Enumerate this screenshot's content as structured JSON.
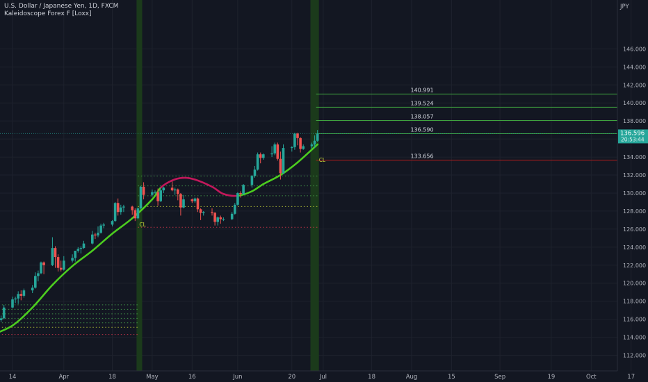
{
  "header": {
    "symbol_line": "U.S. Dollar / Japanese Yen, 1D, FXCM",
    "indicator_line": "Kaleidoscope Forex F [Loxx]"
  },
  "axis": {
    "currency": "JPY",
    "last_price": "136.596",
    "countdown": "20:53:44"
  },
  "colors": {
    "background": "#131722",
    "up": "#26a69a",
    "down": "#ef5350",
    "band": "#1b3a1b",
    "indicator_up": "#4ccd1f",
    "indicator_down": "#c2185b",
    "level_green": "#3fa33f",
    "level_red": "#b71c1c",
    "axis_text": "#b2b5be"
  },
  "chart_data": {
    "type": "candlestick",
    "ylim": [
      111.5,
      150.5
    ],
    "y_ticks": [
      112,
      114,
      116,
      118,
      120,
      122,
      124,
      126,
      128,
      130,
      132,
      134,
      136,
      138,
      140,
      142,
      144,
      146
    ],
    "x_ticks": [
      {
        "label": "14",
        "date": "2022-03-14"
      },
      {
        "label": "Apr",
        "date": "2022-04-01"
      },
      {
        "label": "18",
        "date": "2022-04-18"
      },
      {
        "label": "May",
        "date": "2022-05-02"
      },
      {
        "label": "16",
        "date": "2022-05-16"
      },
      {
        "label": "Jun",
        "date": "2022-06-01"
      },
      {
        "label": "20",
        "date": "2022-06-20"
      },
      {
        "label": "Jul",
        "date": "2022-07-01"
      },
      {
        "label": "18",
        "date": "2022-07-18"
      },
      {
        "label": "Aug",
        "date": "2022-08-01"
      },
      {
        "label": "15",
        "date": "2022-08-15"
      },
      {
        "label": "Sep",
        "date": "2022-09-01"
      },
      {
        "label": "19",
        "date": "2022-09-19"
      },
      {
        "label": "Oct",
        "date": "2022-10-03"
      },
      {
        "label": "17",
        "date": "2022-10-17"
      }
    ],
    "highlight_bands": [
      {
        "start": "2022-04-27",
        "end": "2022-04-28"
      },
      {
        "start": "2022-06-27",
        "end": "2022-06-29"
      }
    ],
    "price_levels": [
      {
        "value": 140.991,
        "label": "140.991",
        "color": "green"
      },
      {
        "value": 139.524,
        "label": "139.524",
        "color": "green"
      },
      {
        "value": 138.057,
        "label": "138.057",
        "color": "green"
      },
      {
        "value": 136.59,
        "label": "136.590",
        "color": "green"
      },
      {
        "value": 133.656,
        "label": "133.656",
        "color": "red"
      }
    ],
    "last_price": 136.596,
    "markers": [
      {
        "label": "CL",
        "date": "2022-04-27",
        "price": 126.9
      },
      {
        "label": "CL",
        "date": "2022-06-29",
        "price": 134.1
      }
    ],
    "candles": [
      {
        "date": "2022-03-07",
        "o": 114.9,
        "h": 115.9,
        "l": 114.7,
        "c": 115.6
      },
      {
        "date": "2022-03-08",
        "o": 115.6,
        "h": 116.1,
        "l": 115.4,
        "c": 115.7
      },
      {
        "date": "2022-03-09",
        "o": 115.7,
        "h": 116.2,
        "l": 115.5,
        "c": 115.9
      },
      {
        "date": "2022-03-10",
        "o": 115.9,
        "h": 116.4,
        "l": 115.7,
        "c": 116.1
      },
      {
        "date": "2022-03-11",
        "o": 116.1,
        "h": 117.6,
        "l": 116.0,
        "c": 117.3
      },
      {
        "date": "2022-03-14",
        "o": 117.3,
        "h": 118.5,
        "l": 117.2,
        "c": 118.2
      },
      {
        "date": "2022-03-15",
        "o": 118.2,
        "h": 118.5,
        "l": 117.8,
        "c": 118.3
      },
      {
        "date": "2022-03-16",
        "o": 118.3,
        "h": 119.1,
        "l": 117.7,
        "c": 118.8
      },
      {
        "date": "2022-03-17",
        "o": 118.8,
        "h": 119.2,
        "l": 118.1,
        "c": 118.6
      },
      {
        "date": "2022-03-18",
        "o": 118.6,
        "h": 119.4,
        "l": 118.4,
        "c": 119.2
      },
      {
        "date": "2022-03-21",
        "o": 119.2,
        "h": 119.8,
        "l": 118.9,
        "c": 119.5
      },
      {
        "date": "2022-03-22",
        "o": 119.5,
        "h": 121.2,
        "l": 119.4,
        "c": 120.8
      },
      {
        "date": "2022-03-23",
        "o": 120.8,
        "h": 121.4,
        "l": 120.2,
        "c": 121.1
      },
      {
        "date": "2022-03-24",
        "o": 121.1,
        "h": 122.4,
        "l": 121.0,
        "c": 122.3
      },
      {
        "date": "2022-03-25",
        "o": 122.3,
        "h": 122.4,
        "l": 121.0,
        "c": 122.0
      },
      {
        "date": "2022-03-28",
        "o": 122.0,
        "h": 125.1,
        "l": 121.9,
        "c": 123.9
      },
      {
        "date": "2022-03-29",
        "o": 123.9,
        "h": 124.1,
        "l": 121.7,
        "c": 122.9
      },
      {
        "date": "2022-03-30",
        "o": 122.9,
        "h": 123.2,
        "l": 121.3,
        "c": 121.7
      },
      {
        "date": "2022-03-31",
        "o": 121.7,
        "h": 122.5,
        "l": 121.3,
        "c": 121.5
      },
      {
        "date": "2022-04-01",
        "o": 121.5,
        "h": 123.0,
        "l": 121.4,
        "c": 122.5
      },
      {
        "date": "2022-04-04",
        "o": 122.5,
        "h": 123.2,
        "l": 122.3,
        "c": 122.8
      },
      {
        "date": "2022-04-05",
        "o": 122.8,
        "h": 123.4,
        "l": 122.4,
        "c": 123.6
      },
      {
        "date": "2022-04-06",
        "o": 123.6,
        "h": 124.0,
        "l": 123.4,
        "c": 123.8
      },
      {
        "date": "2022-04-07",
        "o": 123.8,
        "h": 124.1,
        "l": 123.3,
        "c": 123.9
      },
      {
        "date": "2022-04-08",
        "o": 123.9,
        "h": 124.7,
        "l": 123.8,
        "c": 124.4
      },
      {
        "date": "2022-04-11",
        "o": 124.4,
        "h": 125.8,
        "l": 124.3,
        "c": 125.4
      },
      {
        "date": "2022-04-12",
        "o": 125.4,
        "h": 125.6,
        "l": 124.9,
        "c": 125.3
      },
      {
        "date": "2022-04-13",
        "o": 125.3,
        "h": 126.3,
        "l": 125.1,
        "c": 125.6
      },
      {
        "date": "2022-04-14",
        "o": 125.6,
        "h": 126.6,
        "l": 125.5,
        "c": 126.4
      },
      {
        "date": "2022-04-15",
        "o": 126.4,
        "h": 126.7,
        "l": 126.1,
        "c": 126.5
      },
      {
        "date": "2022-04-18",
        "o": 126.5,
        "h": 127.0,
        "l": 126.3,
        "c": 126.9
      },
      {
        "date": "2022-04-19",
        "o": 126.9,
        "h": 129.0,
        "l": 126.8,
        "c": 128.9
      },
      {
        "date": "2022-04-20",
        "o": 128.9,
        "h": 129.4,
        "l": 127.5,
        "c": 127.9
      },
      {
        "date": "2022-04-21",
        "o": 127.9,
        "h": 128.7,
        "l": 127.6,
        "c": 128.4
      },
      {
        "date": "2022-04-22",
        "o": 128.4,
        "h": 128.7,
        "l": 127.9,
        "c": 128.5
      },
      {
        "date": "2022-04-25",
        "o": 128.5,
        "h": 128.6,
        "l": 127.6,
        "c": 128.1
      },
      {
        "date": "2022-04-26",
        "o": 128.1,
        "h": 128.3,
        "l": 126.9,
        "c": 127.2
      },
      {
        "date": "2022-04-27",
        "o": 127.2,
        "h": 128.4,
        "l": 127.1,
        "c": 128.3
      },
      {
        "date": "2022-04-28",
        "o": 128.3,
        "h": 130.8,
        "l": 128.2,
        "c": 130.7
      },
      {
        "date": "2022-04-29",
        "o": 130.7,
        "h": 131.2,
        "l": 129.3,
        "c": 129.8
      },
      {
        "date": "2022-05-02",
        "o": 129.8,
        "h": 130.4,
        "l": 129.6,
        "c": 130.1
      },
      {
        "date": "2022-05-03",
        "o": 130.1,
        "h": 130.3,
        "l": 129.9,
        "c": 130.1
      },
      {
        "date": "2022-05-04",
        "o": 130.1,
        "h": 130.5,
        "l": 128.6,
        "c": 129.1
      },
      {
        "date": "2022-05-05",
        "o": 129.1,
        "h": 130.6,
        "l": 129.0,
        "c": 130.3
      },
      {
        "date": "2022-05-06",
        "o": 130.3,
        "h": 130.7,
        "l": 130.0,
        "c": 130.6
      },
      {
        "date": "2022-05-09",
        "o": 130.6,
        "h": 131.3,
        "l": 130.2,
        "c": 130.3
      },
      {
        "date": "2022-05-10",
        "o": 130.3,
        "h": 130.6,
        "l": 129.8,
        "c": 130.4
      },
      {
        "date": "2022-05-11",
        "o": 130.4,
        "h": 130.5,
        "l": 129.2,
        "c": 129.9
      },
      {
        "date": "2022-05-12",
        "o": 129.9,
        "h": 130.0,
        "l": 127.5,
        "c": 128.4
      },
      {
        "date": "2022-05-13",
        "o": 128.4,
        "h": 129.8,
        "l": 128.3,
        "c": 129.3
      },
      {
        "date": "2022-05-16",
        "o": 129.3,
        "h": 129.4,
        "l": 128.9,
        "c": 129.1
      },
      {
        "date": "2022-05-17",
        "o": 129.1,
        "h": 129.5,
        "l": 128.9,
        "c": 129.4
      },
      {
        "date": "2022-05-18",
        "o": 129.4,
        "h": 129.5,
        "l": 127.9,
        "c": 128.2
      },
      {
        "date": "2022-05-19",
        "o": 128.2,
        "h": 128.3,
        "l": 127.0,
        "c": 127.8
      },
      {
        "date": "2022-05-20",
        "o": 127.8,
        "h": 128.0,
        "l": 127.5,
        "c": 127.9
      },
      {
        "date": "2022-05-23",
        "o": 127.9,
        "h": 128.3,
        "l": 127.5,
        "c": 127.8
      },
      {
        "date": "2022-05-24",
        "o": 127.8,
        "h": 127.9,
        "l": 126.4,
        "c": 126.8
      },
      {
        "date": "2022-05-25",
        "o": 126.8,
        "h": 127.4,
        "l": 126.4,
        "c": 127.3
      },
      {
        "date": "2022-05-26",
        "o": 127.3,
        "h": 127.5,
        "l": 126.6,
        "c": 127.1
      },
      {
        "date": "2022-05-27",
        "o": 127.1,
        "h": 127.3,
        "l": 126.9,
        "c": 127.1
      },
      {
        "date": "2022-05-30",
        "o": 127.1,
        "h": 127.9,
        "l": 127.0,
        "c": 127.7
      },
      {
        "date": "2022-05-31",
        "o": 127.7,
        "h": 128.9,
        "l": 127.6,
        "c": 128.7
      },
      {
        "date": "2022-06-01",
        "o": 128.7,
        "h": 130.1,
        "l": 128.6,
        "c": 130.0
      },
      {
        "date": "2022-06-02",
        "o": 130.0,
        "h": 130.2,
        "l": 129.5,
        "c": 129.9
      },
      {
        "date": "2022-06-03",
        "o": 129.9,
        "h": 131.0,
        "l": 129.8,
        "c": 130.9
      },
      {
        "date": "2022-06-06",
        "o": 130.9,
        "h": 132.0,
        "l": 130.6,
        "c": 131.9
      },
      {
        "date": "2022-06-07",
        "o": 131.9,
        "h": 133.0,
        "l": 131.7,
        "c": 132.6
      },
      {
        "date": "2022-06-08",
        "o": 132.6,
        "h": 134.5,
        "l": 132.5,
        "c": 134.3
      },
      {
        "date": "2022-06-09",
        "o": 134.3,
        "h": 134.5,
        "l": 133.3,
        "c": 133.9
      },
      {
        "date": "2022-06-10",
        "o": 133.9,
        "h": 134.4,
        "l": 133.7,
        "c": 134.3
      },
      {
        "date": "2022-06-13",
        "o": 134.3,
        "h": 135.2,
        "l": 134.0,
        "c": 134.4
      },
      {
        "date": "2022-06-14",
        "o": 134.4,
        "h": 135.6,
        "l": 134.2,
        "c": 135.4
      },
      {
        "date": "2022-06-15",
        "o": 135.4,
        "h": 135.6,
        "l": 133.6,
        "c": 133.8
      },
      {
        "date": "2022-06-16",
        "o": 133.8,
        "h": 134.6,
        "l": 131.5,
        "c": 132.2
      },
      {
        "date": "2022-06-17",
        "o": 132.2,
        "h": 135.4,
        "l": 132.1,
        "c": 135.0
      },
      {
        "date": "2022-06-20",
        "o": 135.0,
        "h": 135.2,
        "l": 134.6,
        "c": 135.1
      },
      {
        "date": "2022-06-21",
        "o": 135.1,
        "h": 136.7,
        "l": 134.8,
        "c": 136.6
      },
      {
        "date": "2022-06-22",
        "o": 136.6,
        "h": 136.7,
        "l": 135.3,
        "c": 136.1
      },
      {
        "date": "2022-06-23",
        "o": 136.1,
        "h": 136.2,
        "l": 134.5,
        "c": 134.9
      },
      {
        "date": "2022-06-24",
        "o": 134.9,
        "h": 135.4,
        "l": 134.8,
        "c": 135.2
      },
      {
        "date": "2022-06-27",
        "o": 135.2,
        "h": 135.6,
        "l": 134.9,
        "c": 135.4
      },
      {
        "date": "2022-06-28",
        "o": 135.4,
        "h": 136.4,
        "l": 135.0,
        "c": 135.8
      },
      {
        "date": "2022-06-29",
        "o": 135.8,
        "h": 137.0,
        "l": 135.7,
        "c": 136.596
      }
    ],
    "indicator": [
      {
        "date": "2022-03-07",
        "v": 114.3,
        "trend": "up"
      },
      {
        "date": "2022-03-14",
        "v": 115.3,
        "trend": "up"
      },
      {
        "date": "2022-03-21",
        "v": 117.3,
        "trend": "up"
      },
      {
        "date": "2022-03-28",
        "v": 119.8,
        "trend": "up"
      },
      {
        "date": "2022-04-04",
        "v": 121.9,
        "trend": "up"
      },
      {
        "date": "2022-04-11",
        "v": 123.6,
        "trend": "up"
      },
      {
        "date": "2022-04-18",
        "v": 125.5,
        "trend": "up"
      },
      {
        "date": "2022-04-25",
        "v": 127.2,
        "trend": "up"
      },
      {
        "date": "2022-05-02",
        "v": 129.3,
        "trend": "up"
      },
      {
        "date": "2022-05-05",
        "v": 130.6,
        "trend": "down"
      },
      {
        "date": "2022-05-09",
        "v": 131.4,
        "trend": "down"
      },
      {
        "date": "2022-05-13",
        "v": 131.7,
        "trend": "down"
      },
      {
        "date": "2022-05-17",
        "v": 131.5,
        "trend": "down"
      },
      {
        "date": "2022-05-23",
        "v": 130.7,
        "trend": "down"
      },
      {
        "date": "2022-05-27",
        "v": 129.9,
        "trend": "down"
      },
      {
        "date": "2022-06-01",
        "v": 129.7,
        "trend": "up"
      },
      {
        "date": "2022-06-06",
        "v": 130.2,
        "trend": "up"
      },
      {
        "date": "2022-06-10",
        "v": 131.0,
        "trend": "up"
      },
      {
        "date": "2022-06-16",
        "v": 132.0,
        "trend": "up"
      },
      {
        "date": "2022-06-22",
        "v": 133.4,
        "trend": "up"
      },
      {
        "date": "2022-06-29",
        "v": 135.4,
        "trend": "up"
      }
    ],
    "dotted_levels": [
      {
        "start": "2022-03-07",
        "end": "2022-04-27",
        "values": [
          117.6,
          117.1,
          116.6,
          116.1,
          115.6,
          115.1,
          114.3
        ],
        "colors": [
          "g",
          "g",
          "g",
          "g",
          "g",
          "y",
          "r"
        ]
      },
      {
        "start": "2022-04-27",
        "end": "2022-06-29",
        "values": [
          131.9,
          130.8,
          129.7,
          128.5,
          126.2
        ],
        "colors": [
          "g",
          "g",
          "g",
          "y",
          "r"
        ]
      }
    ]
  }
}
